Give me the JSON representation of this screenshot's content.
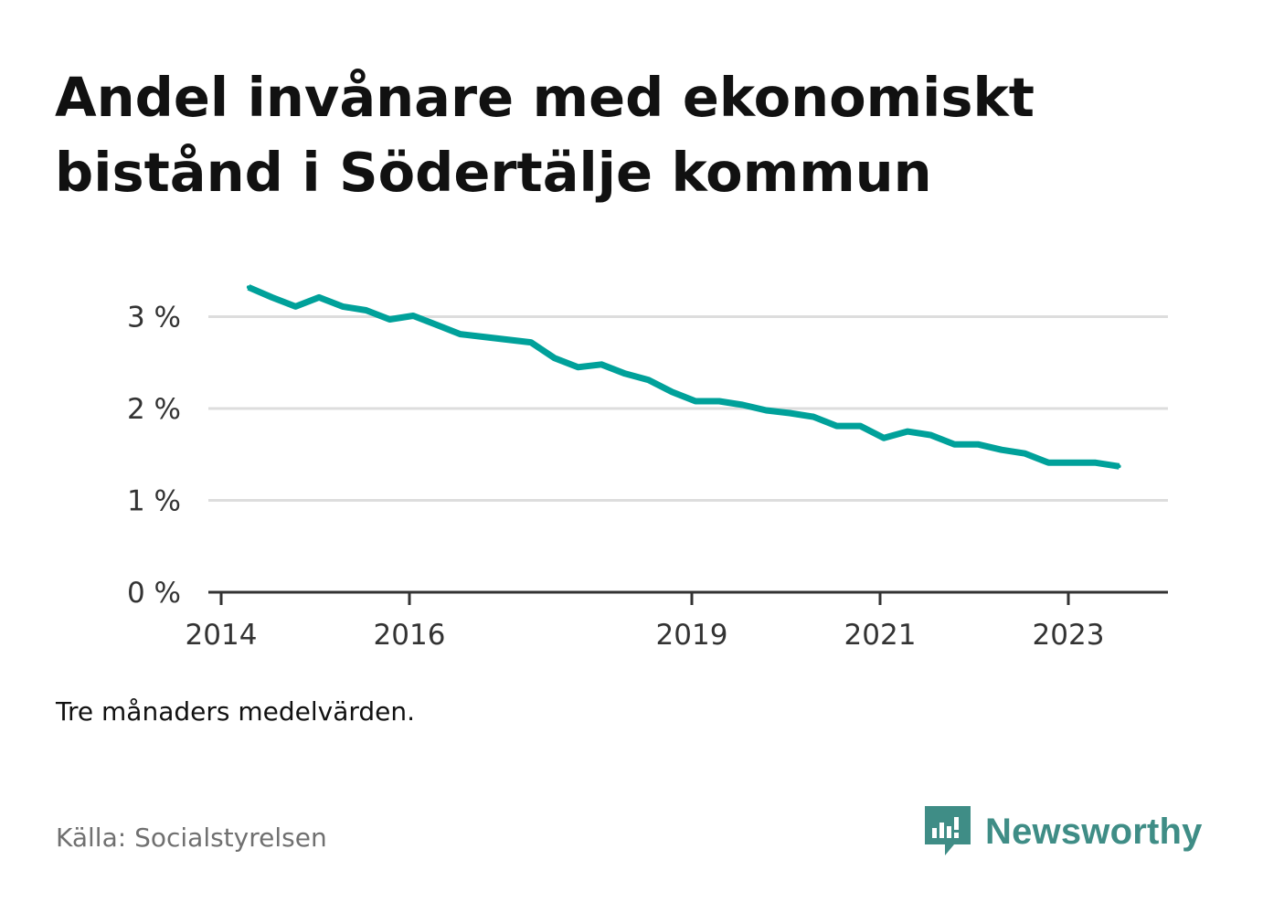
{
  "title": "Andel invånare med ekonomiskt bistånd i Södertälje kommun",
  "note": "Tre månaders medelvärden.",
  "source": "Källa: Socialstyrelsen",
  "brand": {
    "name": "Newsworthy",
    "icon": "newsworthy-logo-icon",
    "color": "#3f8d86"
  },
  "colors": {
    "line": "#00a19a",
    "grid": "#dddddd",
    "axis": "#333333"
  },
  "chart_data": {
    "type": "line",
    "title": "Andel invånare med ekonomiskt bistånd i Södertälje kommun",
    "xlabel": "",
    "ylabel": "",
    "x_unit": "year",
    "xlim": [
      2014,
      2024.5
    ],
    "ylim": [
      0,
      3.3
    ],
    "y_ticks": [
      {
        "value": 0,
        "label": "0 %"
      },
      {
        "value": 1,
        "label": "1 %"
      },
      {
        "value": 2,
        "label": "2 %"
      },
      {
        "value": 3,
        "label": "3 %"
      }
    ],
    "x_ticks": [
      {
        "value": 2014,
        "label": "2014"
      },
      {
        "value": 2016,
        "label": "2016"
      },
      {
        "value": 2019,
        "label": "2019"
      },
      {
        "value": 2021,
        "label": "2021"
      },
      {
        "value": 2023,
        "label": "2023"
      }
    ],
    "grid": true,
    "legend": "none",
    "series": [
      {
        "color": "#00a19a",
        "x": [
          2014.29,
          2014.54,
          2014.79,
          2015.04,
          2015.29,
          2015.54,
          2015.79,
          2016.04,
          2016.29,
          2016.54,
          2016.79,
          2017.04,
          2017.29,
          2017.54,
          2017.79,
          2018.04,
          2018.29,
          2018.54,
          2018.79,
          2019.04,
          2019.29,
          2019.54,
          2019.79,
          2020.04,
          2020.29,
          2020.54,
          2020.79,
          2021.04,
          2021.29,
          2021.54,
          2021.79,
          2022.04,
          2022.29,
          2022.54,
          2022.79,
          2023.04,
          2023.29,
          2023.54
        ],
        "y": [
          3.32,
          3.21,
          3.11,
          3.21,
          3.11,
          3.07,
          2.97,
          3.01,
          2.91,
          2.81,
          2.78,
          2.75,
          2.72,
          2.55,
          2.45,
          2.48,
          2.38,
          2.31,
          2.18,
          2.08,
          2.08,
          2.04,
          1.98,
          1.95,
          1.91,
          1.81,
          1.81,
          1.68,
          1.75,
          1.71,
          1.61,
          1.61,
          1.55,
          1.51,
          1.41,
          1.41,
          1.41,
          1.37
        ]
      }
    ]
  }
}
